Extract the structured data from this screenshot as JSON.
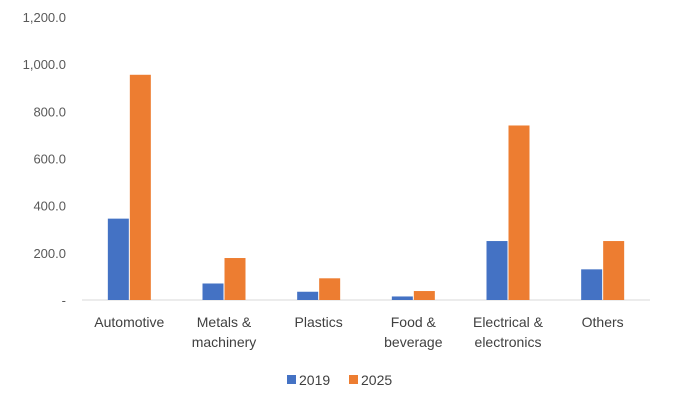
{
  "chart_data": {
    "type": "bar",
    "categories": [
      [
        "Automotive"
      ],
      [
        "Metals &",
        "machinery"
      ],
      [
        "Plastics"
      ],
      [
        "Food &",
        "beverage"
      ],
      [
        "Electrical &",
        "electronics"
      ],
      [
        "Others"
      ]
    ],
    "series": [
      {
        "name": "2019",
        "color": "#4472C4",
        "values": [
          345,
          70,
          35,
          15,
          250,
          130
        ]
      },
      {
        "name": "2025",
        "color": "#ED7D31",
        "values": [
          955,
          178,
          92,
          38,
          740,
          250
        ]
      }
    ],
    "yticks": [
      "-",
      "200.0",
      "400.0",
      "600.0",
      "800.0",
      "1,000.0",
      "1,200.0"
    ],
    "ylim": [
      0,
      1200
    ],
    "grid": false,
    "legend_position": "bottom"
  }
}
